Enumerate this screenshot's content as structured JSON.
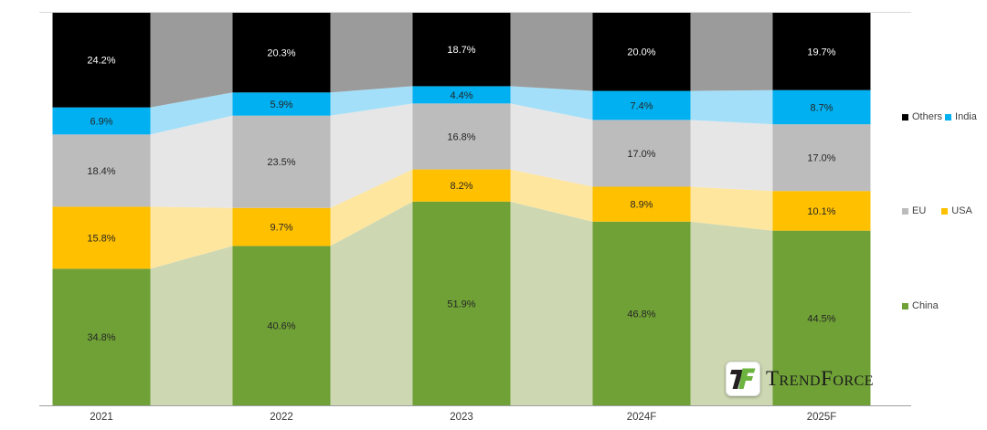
{
  "chart_data": {
    "type": "bar",
    "subtype": "stacked-percent-columns-with-ribbons",
    "categories": [
      "2021",
      "2022",
      "2023",
      "2024F",
      "2025F"
    ],
    "series": [
      {
        "name": "China",
        "color": "#6FA136",
        "ribbon_color": "#CDD8B2",
        "values": [
          34.8,
          40.6,
          51.9,
          46.8,
          44.5
        ]
      },
      {
        "name": "USA",
        "color": "#FFC000",
        "ribbon_color": "#FFE69E",
        "values": [
          15.8,
          9.7,
          8.2,
          8.9,
          10.1
        ]
      },
      {
        "name": "EU",
        "color": "#BCBCBC",
        "ribbon_color": "#E6E6E6",
        "values": [
          18.4,
          23.5,
          16.8,
          17.0,
          17.0
        ]
      },
      {
        "name": "India",
        "color": "#00B0F0",
        "ribbon_color": "#A3DFF8",
        "values": [
          6.9,
          5.9,
          4.4,
          7.4,
          8.7
        ]
      },
      {
        "name": "Others",
        "color": "#000000",
        "ribbon_color": "#9B9B9B",
        "values": [
          24.2,
          20.3,
          18.7,
          20.0,
          19.7
        ]
      }
    ],
    "value_suffix": "%",
    "value_decimals": 1,
    "label_color": "#262626",
    "label_color_on_dark": "#FFFFFF",
    "axis_label_color": "#383838",
    "axis_line_color": "#9E9E9E",
    "top_gridline_color": "#D9D9D9",
    "ylim": [
      0,
      100
    ],
    "grid": "top-line-only",
    "legend_position": "right",
    "legend_rows": [
      [
        "Others",
        "India"
      ],
      [
        "EU",
        "USA"
      ],
      [
        "China"
      ]
    ]
  },
  "branding": {
    "name": "TrendForce"
  }
}
